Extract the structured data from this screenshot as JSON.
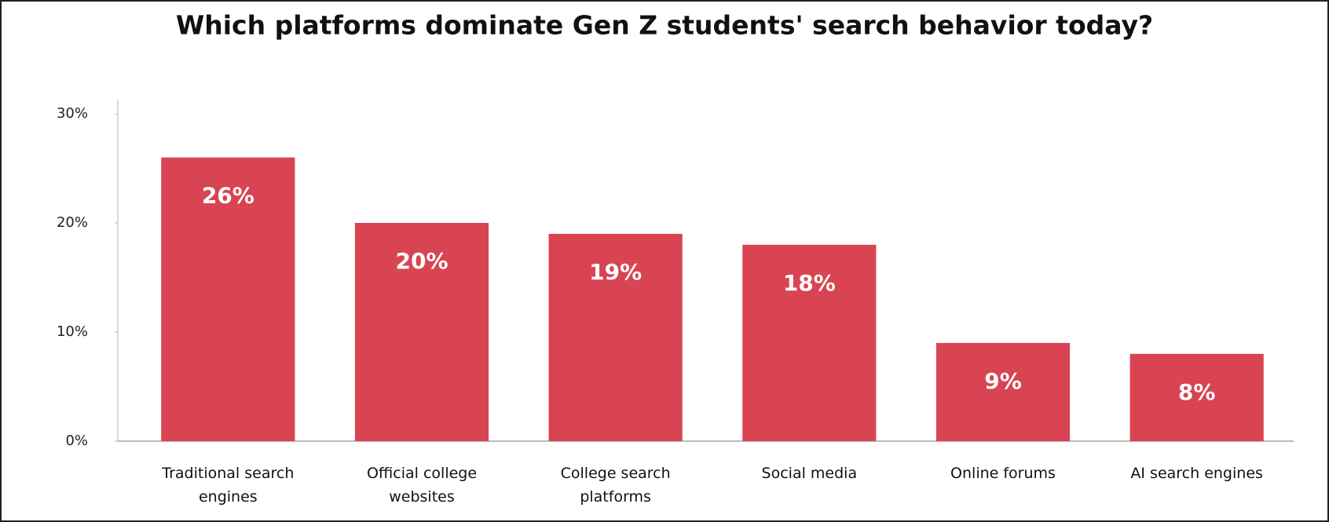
{
  "chart_data": {
    "type": "bar",
    "title": "Which platforms dominate Gen Z students' search behavior today?",
    "categories": [
      "Traditional search engines",
      "Official college websites",
      "College search platforms",
      "Social media",
      "Online forums",
      "AI search engines"
    ],
    "values": [
      26,
      20,
      19,
      18,
      9,
      8
    ],
    "value_labels": [
      "26%",
      "20%",
      "19%",
      "18%",
      "9%",
      "8%"
    ],
    "color": "#d94452",
    "ylim": [
      0,
      30
    ],
    "yticks": [
      {
        "value": 0,
        "label": "0%"
      },
      {
        "value": 10,
        "label": "10%"
      },
      {
        "value": 20,
        "label": "20%"
      },
      {
        "value": 30,
        "label": "30%"
      }
    ],
    "grid": false
  }
}
